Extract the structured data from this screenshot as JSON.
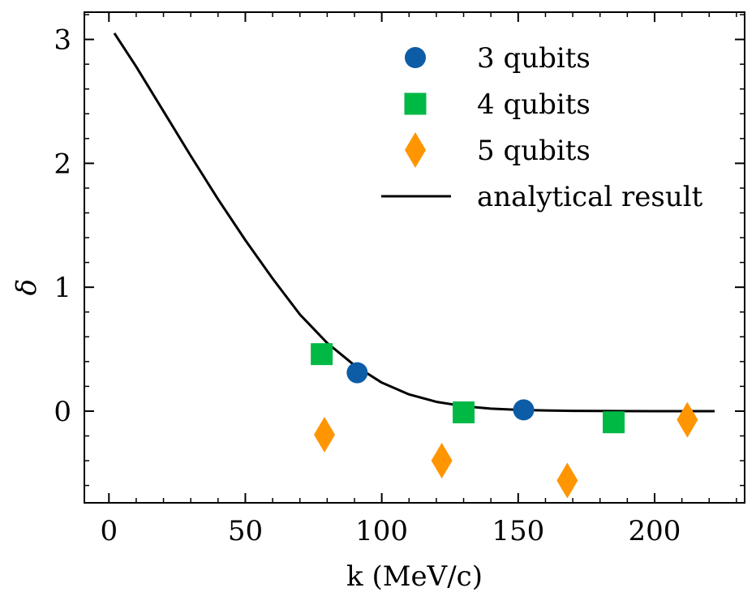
{
  "chart_data": {
    "type": "scatter",
    "title": "",
    "xlabel": "k (MeV/c)",
    "ylabel": "δ",
    "xlim": [
      -9,
      233
    ],
    "ylim": [
      -0.74,
      3.22
    ],
    "xticks": [
      0,
      50,
      100,
      150,
      200
    ],
    "yticks": [
      0,
      1,
      2,
      3
    ],
    "xtick_labels": [
      "0",
      "50",
      "100",
      "150",
      "200"
    ],
    "ytick_labels": [
      "0",
      "1",
      "2",
      "3"
    ],
    "legend_position": "top-right",
    "series": [
      {
        "name": "3 qubits",
        "marker": "circle",
        "color": "#0C5DA5",
        "x": [
          91,
          152
        ],
        "y": [
          0.31,
          0.01
        ]
      },
      {
        "name": "4 qubits",
        "marker": "square",
        "color": "#00B945",
        "x": [
          78,
          130,
          185
        ],
        "y": [
          0.46,
          -0.01,
          -0.09
        ]
      },
      {
        "name": "5 qubits",
        "marker": "diamond",
        "color": "#FF9500",
        "x": [
          79,
          122,
          168,
          212
        ],
        "y": [
          -0.19,
          -0.4,
          -0.56,
          -0.07
        ]
      }
    ],
    "line": {
      "name": "analytical result",
      "color": "#000000",
      "x_range": [
        2,
        222
      ],
      "formula": "3.05 * exp(-(k/58)^2) approximate",
      "x": [
        2,
        10,
        20,
        30,
        40,
        50,
        60,
        70,
        80,
        90,
        100,
        110,
        120,
        130,
        140,
        150,
        160,
        170,
        180,
        200,
        222
      ],
      "y": [
        3.05,
        2.78,
        2.42,
        2.06,
        1.71,
        1.38,
        1.07,
        0.78,
        0.55,
        0.37,
        0.23,
        0.135,
        0.075,
        0.04,
        0.02,
        0.01,
        0.005,
        0.002,
        0.001,
        0.0,
        0.0
      ]
    }
  }
}
